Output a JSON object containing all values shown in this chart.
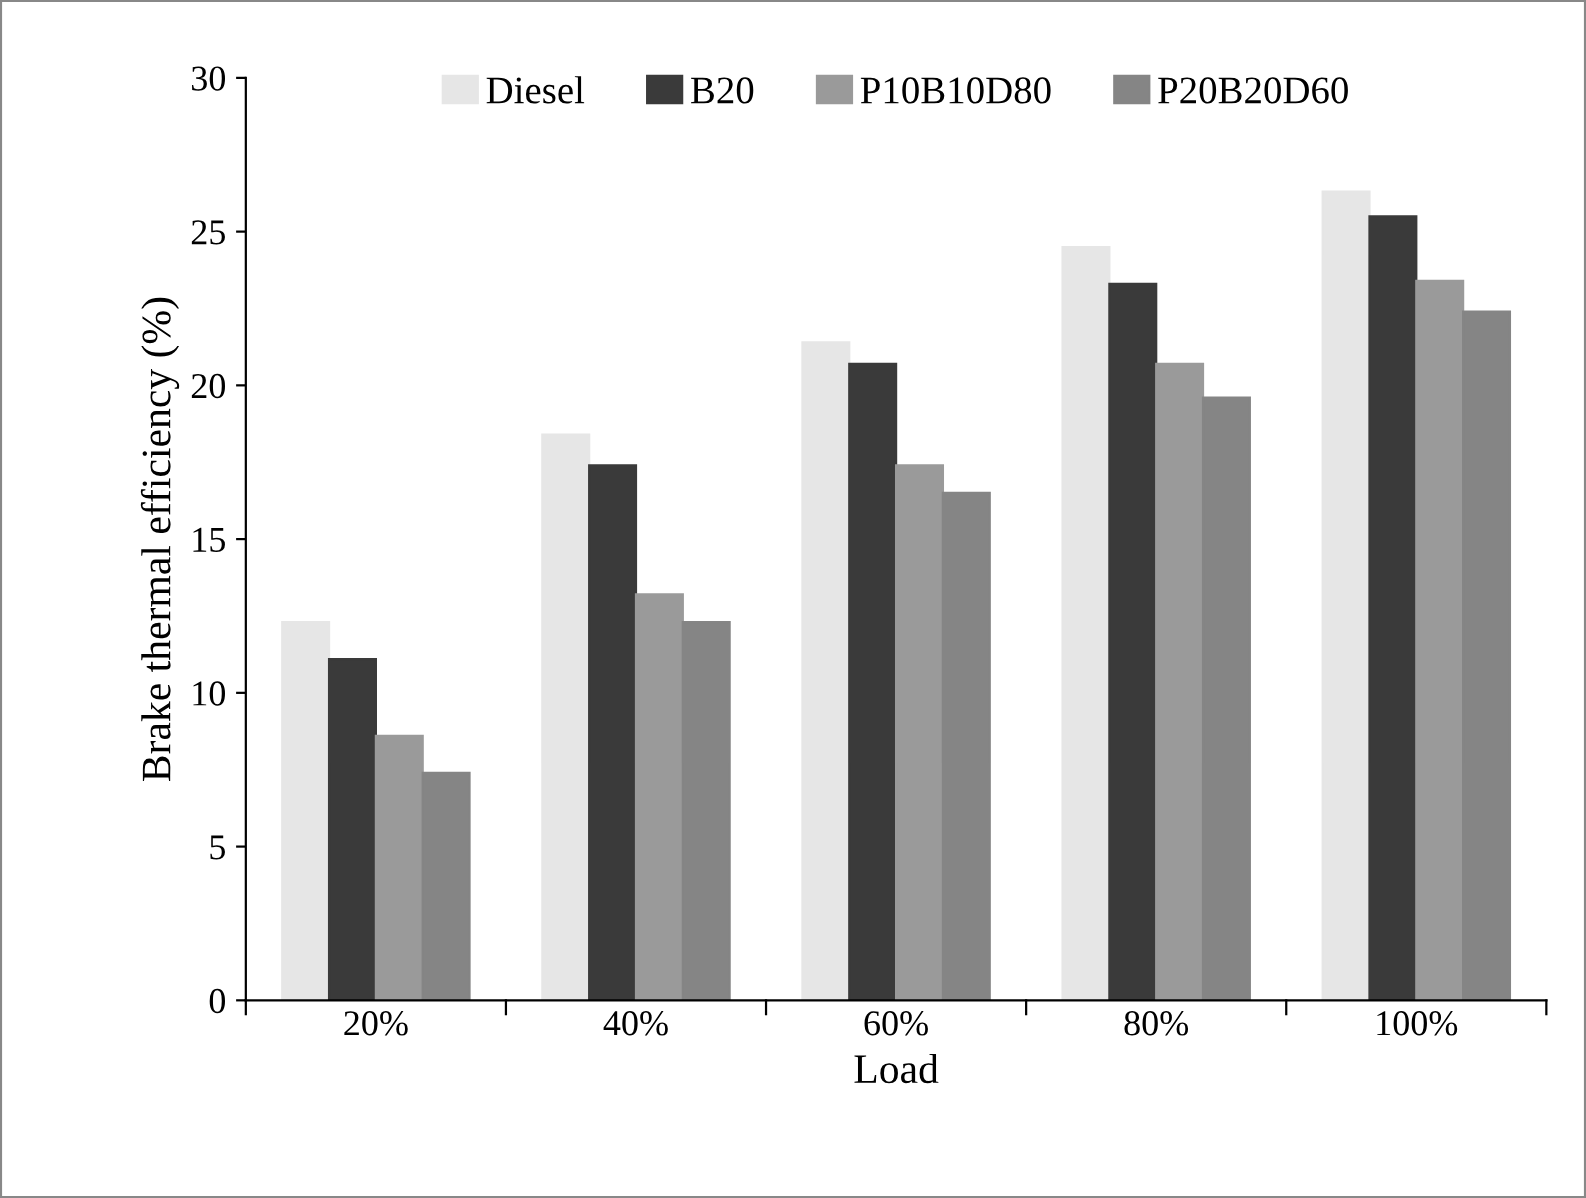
{
  "chart_data": {
    "type": "bar",
    "xlabel": "Load",
    "ylabel": "Brake thermal efficiency (%)",
    "categories": [
      "20%",
      "40%",
      "60%",
      "80%",
      "100%"
    ],
    "series": [
      {
        "name": "Diesel",
        "color": "#e6e6e6",
        "values": [
          12.3,
          18.4,
          21.4,
          24.5,
          26.3
        ]
      },
      {
        "name": "B20",
        "color": "#3a3a3a",
        "values": [
          11.1,
          17.4,
          20.7,
          23.3,
          25.5
        ]
      },
      {
        "name": "P10B10D80",
        "color": "#9a9a9a",
        "values": [
          8.6,
          13.2,
          17.4,
          20.7,
          23.4
        ]
      },
      {
        "name": "P20B20D60",
        "color": "#858585",
        "values": [
          7.4,
          12.3,
          16.5,
          19.6,
          22.4
        ]
      }
    ],
    "ylim": [
      0,
      30
    ],
    "yticks": [
      0,
      5,
      10,
      15,
      20,
      25,
      30
    ],
    "grid": false,
    "legend": "top"
  }
}
